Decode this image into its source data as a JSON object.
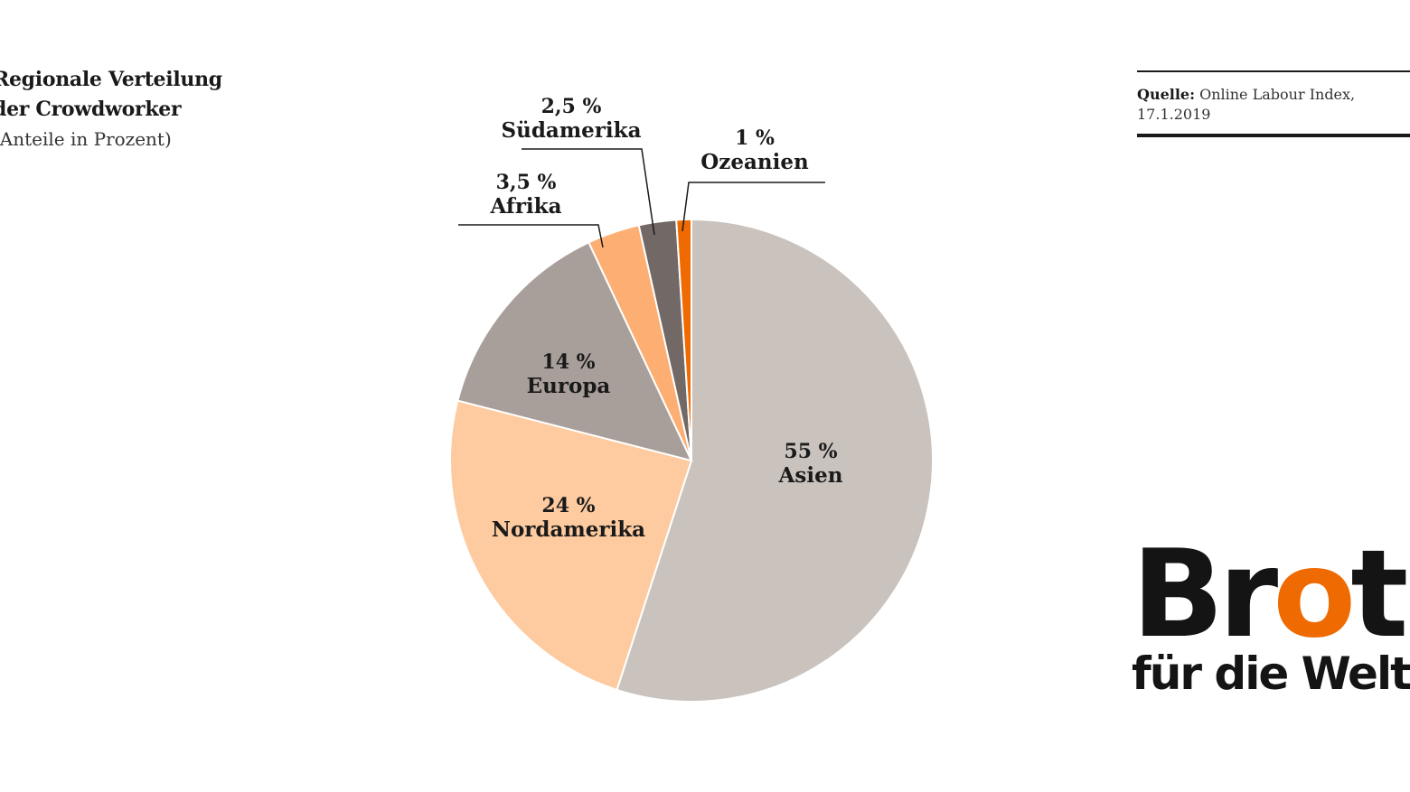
{
  "chart_data": {
    "type": "pie",
    "title": [
      "Regionale Verteilung",
      "der Crowdworker"
    ],
    "subtitle": "(Anteile in Prozent)",
    "slices": [
      {
        "label": "Asien",
        "value": 55,
        "value_label": "55 %",
        "color": "#c9c2bd"
      },
      {
        "label": "Nordamerika",
        "value": 24,
        "value_label": "24 %",
        "color": "#fdcb9f"
      },
      {
        "label": "Europa",
        "value": 14,
        "value_label": "14 %",
        "color": "#a89f9a"
      },
      {
        "label": "Afrika",
        "value": 3.5,
        "value_label": "3,5 %",
        "color": "#fdae72"
      },
      {
        "label": "Südamerika",
        "value": 2.5,
        "value_label": "2,5 %",
        "color": "#726866"
      },
      {
        "label": "Ozeanien",
        "value": 1,
        "value_label": "1 %",
        "color": "#ef6a00"
      }
    ]
  },
  "source": {
    "label": "Quelle:",
    "text": "Online Labour Index,",
    "date": "17.1.2019"
  },
  "logo": {
    "part1": "Br",
    "accent": "o",
    "part2": "t",
    "sub": "für die Welt",
    "accent_color": "#ef6a00"
  }
}
